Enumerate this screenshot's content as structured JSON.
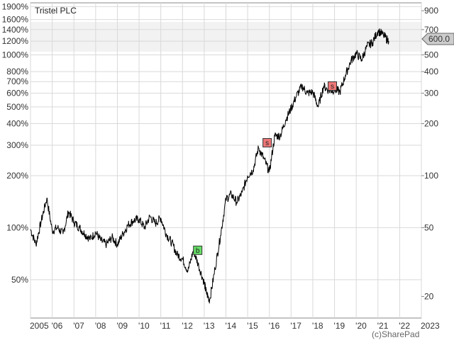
{
  "chart_data": {
    "type": "line",
    "title": "Tristel PLC",
    "credit": "(c)SharePad",
    "current_price_label": "600.0",
    "colors": {
      "line": "#000000",
      "buy": "#66dd66",
      "sell": "#ee7777",
      "grid": "#d9d9d9",
      "shade": "#f2f2f2"
    },
    "grid": true,
    "y_left": {
      "scale": "log",
      "ticks": [
        50,
        100,
        200,
        300,
        400,
        500,
        600,
        700,
        800,
        1000,
        1200,
        1400,
        1600,
        1900
      ],
      "tick_labels": [
        "50%",
        "100%",
        "200%",
        "300%",
        "400%",
        "500%",
        "600%",
        "700%",
        "800%",
        "1000%",
        "1200%",
        "1400%",
        "1600%",
        "1900%"
      ]
    },
    "y_right": {
      "scale": "log",
      "range": [
        15,
        1000
      ],
      "ticks": [
        20,
        50,
        100,
        200,
        300,
        400,
        500,
        700,
        900
      ],
      "tick_labels": [
        "20",
        "50",
        "100",
        "200",
        "300",
        "400",
        "500",
        "700",
        "900"
      ]
    },
    "x_axis": {
      "range": [
        2005.0,
        2023.0
      ],
      "ticks": [
        2005,
        2006,
        2007,
        2008,
        2009,
        2010,
        2011,
        2012,
        2013,
        2014,
        2015,
        2016,
        2017,
        2018,
        2019,
        2020,
        2021,
        2022,
        2023
      ],
      "tick_labels": [
        "2005",
        "'06",
        "'07",
        "'08",
        "'09",
        "'10",
        "'11",
        "'12",
        "'13",
        "'14",
        "'15",
        "'16",
        "'17",
        "'18",
        "'19",
        "'20",
        "'21",
        "'22",
        "2023"
      ]
    },
    "series": [
      {
        "x": [
          2005.0,
          2005.25,
          2005.5,
          2005.75,
          2006.0,
          2006.25,
          2006.5,
          2006.75,
          2007.0,
          2007.25,
          2007.5,
          2007.75,
          2008.0,
          2008.25,
          2008.5,
          2008.75,
          2009.0,
          2009.25,
          2009.5,
          2009.75,
          2010.0,
          2010.25,
          2010.5,
          2010.75,
          2011.0,
          2011.25,
          2011.5,
          2011.75,
          2012.0,
          2012.25,
          2012.5,
          2012.75,
          2013.0,
          2013.1,
          2013.25,
          2013.5,
          2013.75,
          2014.0,
          2014.25,
          2014.5,
          2014.75,
          2015.0,
          2015.25,
          2015.5,
          2015.75,
          2016.0,
          2016.25,
          2016.5,
          2016.75,
          2017.0,
          2017.25,
          2017.5,
          2017.75,
          2018.0,
          2018.25,
          2018.5,
          2018.75,
          2019.0,
          2019.25,
          2019.5,
          2019.75,
          2020.0,
          2020.25,
          2020.5,
          2020.75,
          2021.0,
          2021.25,
          2021.5
        ],
        "y": [
          49,
          40,
          55,
          74,
          48,
          50,
          46,
          62,
          54,
          50,
          46,
          43,
          47,
          42,
          40,
          44,
          40,
          46,
          52,
          55,
          56,
          50,
          58,
          53,
          57,
          46,
          41,
          35,
          33,
          28,
          37,
          30,
          24,
          21,
          19,
          29,
          45,
          73,
          78,
          70,
          80,
          100,
          108,
          145,
          125,
          105,
          170,
          170,
          210,
          245,
          290,
          330,
          300,
          305,
          250,
          330,
          310,
          315,
          305,
          380,
          460,
          510,
          470,
          560,
          590,
          690,
          650,
          600
        ]
      }
    ],
    "annotations": [
      {
        "label": "b",
        "kind": "buy",
        "x": 2012.7,
        "y": 37
      },
      {
        "label": "s",
        "kind": "sell",
        "x": 2015.9,
        "y": 155
      },
      {
        "label": "s",
        "kind": "sell",
        "x": 2018.9,
        "y": 330
      }
    ]
  }
}
